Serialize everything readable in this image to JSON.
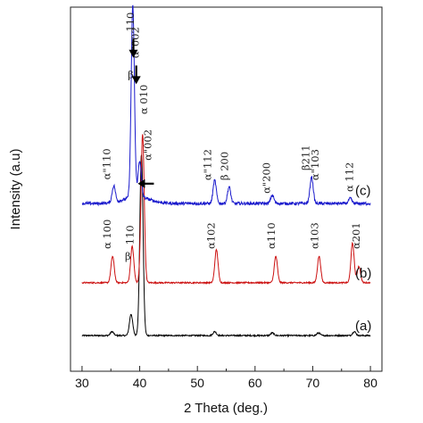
{
  "chart_data": {
    "type": "line",
    "xlabel": "2 Theta (deg.)",
    "ylabel": "Intensity (a.u)",
    "xlim": [
      28,
      82
    ],
    "xticks": [
      "30",
      "40",
      "50",
      "60",
      "70",
      "80"
    ],
    "grid": false,
    "series": [
      {
        "name": "(a)",
        "color": "#000000",
        "baseline": 0,
        "peaks": [
          {
            "x": 35.2,
            "h": 0.012
          },
          {
            "x": 38.5,
            "h": 0.065
          },
          {
            "x": 40.3,
            "h": 0.55
          },
          {
            "x": 53.0,
            "h": 0.012
          },
          {
            "x": 63.0,
            "h": 0.008
          },
          {
            "x": 71.0,
            "h": 0.008
          },
          {
            "x": 77.2,
            "h": 0.012
          }
        ]
      },
      {
        "name": "(b)",
        "color": "#cc1111",
        "baseline": 0.16,
        "peaks": [
          {
            "x": 35.3,
            "h": 0.08
          },
          {
            "x": 38.7,
            "h": 0.11
          },
          {
            "x": 40.5,
            "h": 0.45
          },
          {
            "x": 53.3,
            "h": 0.1
          },
          {
            "x": 63.6,
            "h": 0.08
          },
          {
            "x": 71.1,
            "h": 0.08
          },
          {
            "x": 76.9,
            "h": 0.12
          },
          {
            "x": 78.0,
            "h": 0.05
          }
        ]
      },
      {
        "name": "(c)",
        "color": "#1a1acc",
        "baseline": 0.4,
        "peaks": [
          {
            "x": 35.5,
            "h": 0.05
          },
          {
            "x": 38.8,
            "h": 0.58
          },
          {
            "x": 40.0,
            "h": 0.11
          },
          {
            "x": 53.0,
            "h": 0.07
          },
          {
            "x": 55.5,
            "h": 0.05
          },
          {
            "x": 63.0,
            "h": 0.025
          },
          {
            "x": 69.8,
            "h": 0.08
          },
          {
            "x": 76.5,
            "h": 0.015
          }
        ]
      }
    ],
    "curve_labels": [
      "(a)",
      "(b)",
      "(c)"
    ],
    "annotations": [
      {
        "x": 34.9,
        "y": 0.472,
        "text": "α\"110"
      },
      {
        "x": 38.4,
        "y": 0.78,
        "text": "β"
      },
      {
        "x": 39.0,
        "y": 0.92,
        "text": "110"
      },
      {
        "x": 39.8,
        "y": 0.84,
        "text": "α\"002"
      },
      {
        "x": 41.3,
        "y": 0.67,
        "text": "α 010"
      },
      {
        "x": 42.0,
        "y": 0.53,
        "text": "α\"002"
      },
      {
        "x": 52.4,
        "y": 0.47,
        "text": "α\"112"
      },
      {
        "x": 55.3,
        "y": 0.47,
        "text": "β 200"
      },
      {
        "x": 62.6,
        "y": 0.43,
        "text": "α\"200"
      },
      {
        "x": 69.4,
        "y": 0.5,
        "text": "β211"
      },
      {
        "x": 71.0,
        "y": 0.47,
        "text": "α\"103"
      },
      {
        "x": 77.0,
        "y": 0.435,
        "text": "α 112"
      },
      {
        "x": 35.0,
        "y": 0.262,
        "text": "α 100"
      },
      {
        "x": 37.9,
        "y": 0.23,
        "text": "β"
      },
      {
        "x": 38.9,
        "y": 0.275,
        "text": "110"
      },
      {
        "x": 53.0,
        "y": 0.262,
        "text": "α102"
      },
      {
        "x": 63.4,
        "y": 0.262,
        "text": "α110"
      },
      {
        "x": 70.9,
        "y": 0.262,
        "text": "α103"
      },
      {
        "x": 78.1,
        "y": 0.262,
        "text": "α201"
      }
    ],
    "arrows": [
      {
        "x": 38.9,
        "y": 0.86,
        "direction": "down"
      },
      {
        "x": 39.4,
        "y": 0.78,
        "direction": "down"
      },
      {
        "x": 40.6,
        "y": 0.46,
        "direction": "left"
      }
    ]
  }
}
